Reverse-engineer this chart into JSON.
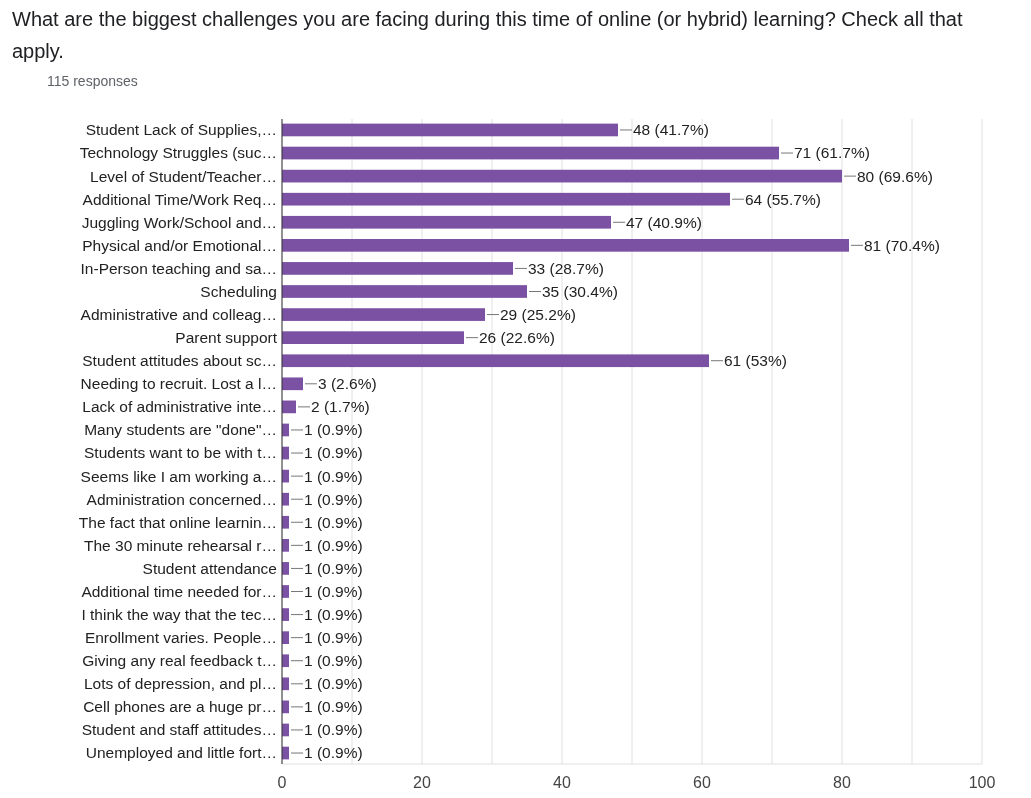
{
  "chart_data": {
    "type": "bar",
    "orientation": "horizontal",
    "title": "What are the biggest challenges you are facing during this time of online (or hybrid) learning? Check all that apply.",
    "subtitle": "115 responses",
    "categories": [
      "Student Lack of Supplies,…",
      "Technology Struggles (suc…",
      "Level of Student/Teacher…",
      "Additional Time/Work Req…",
      "Juggling Work/School and…",
      "Physical and/or Emotional…",
      "In-Person teaching and sa…",
      "Scheduling",
      "Administrative and colleag…",
      "Parent support",
      "Student attitudes about sc…",
      "Needing to recruit. Lost a l…",
      "Lack of administrative inte…",
      "Many students are \"done\"…",
      "Students want to be with t…",
      "Seems like I am working a…",
      "Administration concerned…",
      "The fact that online learnin…",
      "The 30 minute rehearsal r…",
      "Student attendance",
      "Additional time needed for…",
      "I think the way that the tec…",
      "Enrollment varies. People…",
      "Giving any real feedback t…",
      "Lots of depression, and pl…",
      "Cell phones are a huge pr…",
      "Student and staff attitudes…",
      "Unemployed and little fort…"
    ],
    "values": [
      48,
      71,
      80,
      64,
      47,
      81,
      33,
      35,
      29,
      26,
      61,
      3,
      2,
      1,
      1,
      1,
      1,
      1,
      1,
      1,
      1,
      1,
      1,
      1,
      1,
      1,
      1,
      1
    ],
    "value_labels": [
      "48 (41.7%)",
      "71 (61.7%)",
      "80 (69.6%)",
      "64 (55.7%)",
      "47 (40.9%)",
      "81 (70.4%)",
      "33 (28.7%)",
      "35 (30.4%)",
      "29 (25.2%)",
      "26 (22.6%)",
      "61 (53%)",
      "3 (2.6%)",
      "2 (1.7%)",
      "1 (0.9%)",
      "1 (0.9%)",
      "1 (0.9%)",
      "1 (0.9%)",
      "1 (0.9%)",
      "1 (0.9%)",
      "1 (0.9%)",
      "1 (0.9%)",
      "1 (0.9%)",
      "1 (0.9%)",
      "1 (0.9%)",
      "1 (0.9%)",
      "1 (0.9%)",
      "1 (0.9%)",
      "1 (0.9%)"
    ],
    "color": "#7b51a3",
    "xlim": [
      0,
      100
    ],
    "xticks": [
      0,
      {
        "value": 10,
        "label": null
      },
      20,
      {
        "value": 30,
        "label": null
      },
      40,
      {
        "value": 50,
        "label": null
      },
      60,
      {
        "value": 70,
        "label": null
      },
      80,
      {
        "value": 90,
        "label": null
      },
      100
    ],
    "grid": "x"
  }
}
